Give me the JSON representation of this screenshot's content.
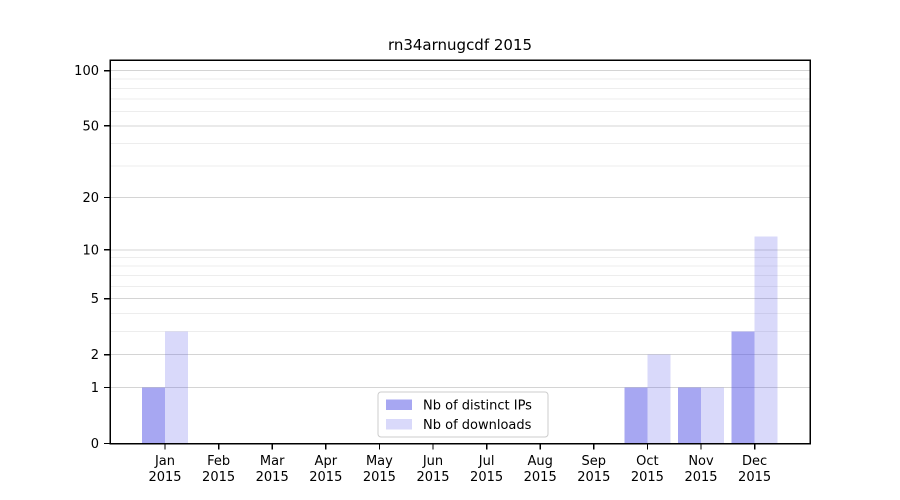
{
  "figure": {
    "background": "#ffffff"
  },
  "chart_data": {
    "type": "bar",
    "title": "rn34arnugcdf 2015",
    "categories": [
      "Jan",
      "Feb",
      "Mar",
      "Apr",
      "May",
      "Jun",
      "Jul",
      "Aug",
      "Sep",
      "Oct",
      "Nov",
      "Dec"
    ],
    "category_year": "2015",
    "series": [
      {
        "name": "Nb of distinct IPs",
        "color": "rgba(80,80,230,0.50)",
        "values": [
          1,
          0,
          0,
          0,
          0,
          0,
          0,
          0,
          0,
          1,
          1,
          3
        ]
      },
      {
        "name": "Nb of downloads",
        "color": "rgba(80,80,230,0.22)",
        "values": [
          3,
          0,
          0,
          0,
          0,
          0,
          0,
          0,
          0,
          2,
          1,
          12
        ]
      }
    ],
    "xlabel": "",
    "ylabel": "",
    "yscale": "log1p",
    "ylim": [
      0,
      114
    ],
    "yticks": [
      0,
      1,
      2,
      5,
      10,
      20,
      50,
      100
    ],
    "minor_gridlines": [
      3,
      4,
      6,
      7,
      8,
      9,
      30,
      40,
      60,
      70,
      80,
      90
    ],
    "grid": "horizontal",
    "legend_position": "lower-center",
    "colors": {
      "major_grid": "#d4d4d4",
      "minor_grid": "#ededed",
      "spine": "#000000",
      "text": "#000000",
      "legend_border": "#cccccc",
      "legend_background": "#ffffff"
    }
  }
}
